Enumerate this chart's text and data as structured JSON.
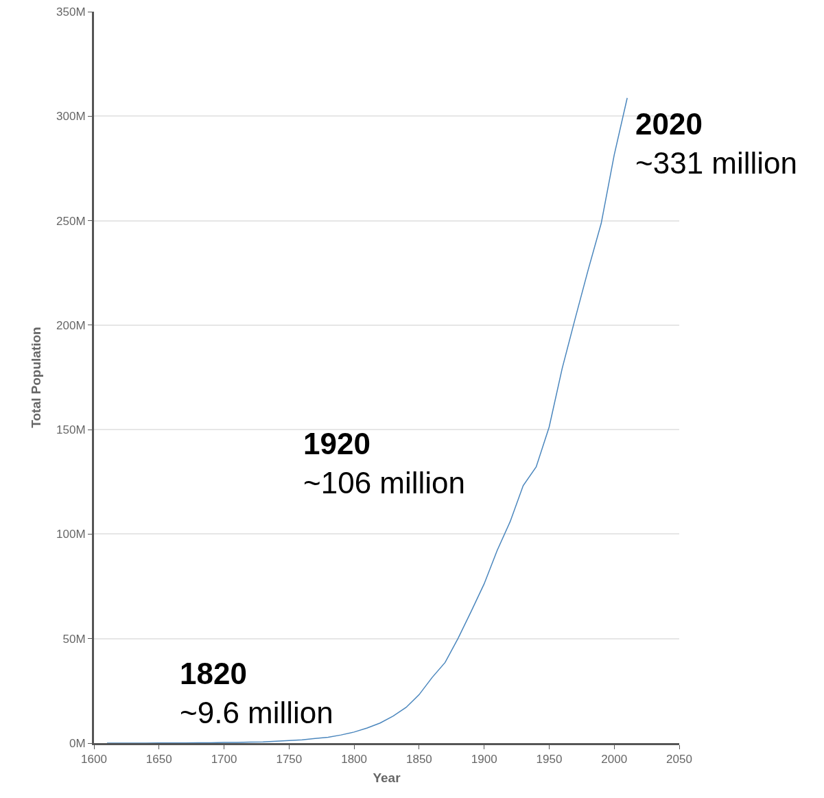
{
  "chart_data": {
    "type": "line",
    "xlabel": "Year",
    "ylabel": "Total Population",
    "x": [
      1610,
      1620,
      1630,
      1640,
      1650,
      1660,
      1670,
      1680,
      1690,
      1700,
      1710,
      1720,
      1730,
      1740,
      1750,
      1760,
      1770,
      1780,
      1790,
      1800,
      1810,
      1820,
      1830,
      1840,
      1850,
      1860,
      1870,
      1880,
      1890,
      1900,
      1910,
      1920,
      1930,
      1940,
      1950,
      1960,
      1970,
      1980,
      1990,
      2000,
      2010
    ],
    "series": [
      {
        "color": "#4a86bd",
        "values": [
          0,
          0,
          0,
          0,
          0.1,
          0.1,
          0.1,
          0.2,
          0.2,
          0.3,
          0.3,
          0.5,
          0.6,
          0.9,
          1.2,
          1.6,
          2.2,
          2.8,
          3.9,
          5.3,
          7.2,
          9.6,
          12.9,
          17.1,
          23.2,
          31.4,
          38.6,
          50.2,
          63,
          76.2,
          92.2,
          106,
          123.2,
          132.2,
          151.3,
          179.3,
          203.2,
          226.5,
          248.7,
          281.4,
          308.7
        ]
      }
    ],
    "xlim": [
      1600,
      2050
    ],
    "xticks": [
      1600,
      1650,
      1700,
      1750,
      1800,
      1850,
      1900,
      1950,
      2000,
      2050
    ],
    "ylim": [
      0,
      350
    ],
    "yticks": [
      {
        "value": 0,
        "label": "0M"
      },
      {
        "value": 50,
        "label": "50M"
      },
      {
        "value": 100,
        "label": "100M"
      },
      {
        "value": 150,
        "label": "150M"
      },
      {
        "value": 200,
        "label": "200M"
      },
      {
        "value": 250,
        "label": "250M"
      },
      {
        "value": 300,
        "label": "300M"
      },
      {
        "value": 350,
        "label": "350M"
      }
    ],
    "grid": "y",
    "marker": "none",
    "line_style": "solid",
    "annotations": [
      "1820\n~9.6 million",
      "1920\n~106 million",
      "2020\n~331 million"
    ]
  }
}
